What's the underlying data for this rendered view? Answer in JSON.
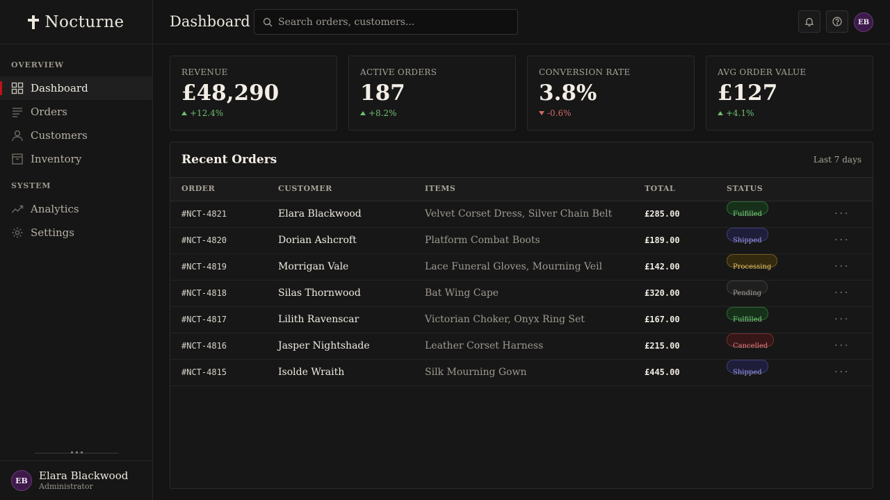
{
  "brand": {
    "name": "Nocturne"
  },
  "sidebar": {
    "sections": [
      {
        "label": "OVERVIEW"
      },
      {
        "label": "SYSTEM"
      }
    ],
    "items": [
      {
        "label": "Dashboard",
        "icon": "grid-icon"
      },
      {
        "label": "Orders",
        "icon": "list-icon"
      },
      {
        "label": "Customers",
        "icon": "user-icon"
      },
      {
        "label": "Inventory",
        "icon": "box-icon"
      },
      {
        "label": "Analytics",
        "icon": "trend-icon"
      },
      {
        "label": "Settings",
        "icon": "gear-icon"
      }
    ],
    "user": {
      "initials": "EB",
      "name": "Elara Blackwood",
      "role": "Administrator"
    }
  },
  "header": {
    "title": "Dashboard",
    "search_placeholder": "Search orders, customers...",
    "avatar_initials": "EB"
  },
  "stats": [
    {
      "label": "REVENUE",
      "value": "£48,290",
      "delta": "+12.4%",
      "trend": "up"
    },
    {
      "label": "ACTIVE ORDERS",
      "value": "187",
      "delta": "+8.2%",
      "trend": "up"
    },
    {
      "label": "CONVERSION RATE",
      "value": "3.8%",
      "delta": "-0.6%",
      "trend": "down"
    },
    {
      "label": "AVG ORDER VALUE",
      "value": "£127",
      "delta": "+4.1%",
      "trend": "up"
    }
  ],
  "orders": {
    "title": "Recent Orders",
    "range": "Last 7 days",
    "columns": [
      "ORDER",
      "CUSTOMER",
      "ITEMS",
      "TOTAL",
      "STATUS"
    ],
    "more_label": "···",
    "rows": [
      {
        "id": "#NCT-4821",
        "customer": "Elara Blackwood",
        "items": "Velvet Corset Dress, Silver Chain Belt",
        "total": "£285.00",
        "status": "Fulfilled"
      },
      {
        "id": "#NCT-4820",
        "customer": "Dorian Ashcroft",
        "items": "Platform Combat Boots",
        "total": "£189.00",
        "status": "Shipped"
      },
      {
        "id": "#NCT-4819",
        "customer": "Morrigan Vale",
        "items": "Lace Funeral Gloves, Mourning Veil",
        "total": "£142.00",
        "status": "Processing"
      },
      {
        "id": "#NCT-4818",
        "customer": "Silas Thornwood",
        "items": "Bat Wing Cape",
        "total": "£320.00",
        "status": "Pending"
      },
      {
        "id": "#NCT-4817",
        "customer": "Lilith Ravenscar",
        "items": "Victorian Choker, Onyx Ring Set",
        "total": "£167.00",
        "status": "Fulfilled"
      },
      {
        "id": "#NCT-4816",
        "customer": "Jasper Nightshade",
        "items": "Leather Corset Harness",
        "total": "£215.00",
        "status": "Cancelled"
      },
      {
        "id": "#NCT-4815",
        "customer": "Isolde Wraith",
        "items": "Silk Mourning Gown",
        "total": "£445.00",
        "status": "Shipped"
      }
    ]
  },
  "status_colors": {
    "Fulfilled": {
      "fg": "#7fcf82",
      "bg": "#16301a",
      "border": "#2f6a35"
    },
    "Shipped": {
      "fg": "#9b9ae6",
      "bg": "#1e1e3a",
      "border": "#3d3d78"
    },
    "Processing": {
      "fg": "#e6c46a",
      "bg": "#33290f",
      "border": "#6e5a20"
    },
    "Pending": {
      "fg": "#a8a298",
      "bg": "#1f1f1f",
      "border": "#3d3d3d"
    },
    "Cancelled": {
      "fg": "#e08080",
      "bg": "#361616",
      "border": "#723030"
    }
  },
  "colors": {
    "accent": "#c0121b",
    "background": "#141414",
    "surface": "#171717"
  }
}
